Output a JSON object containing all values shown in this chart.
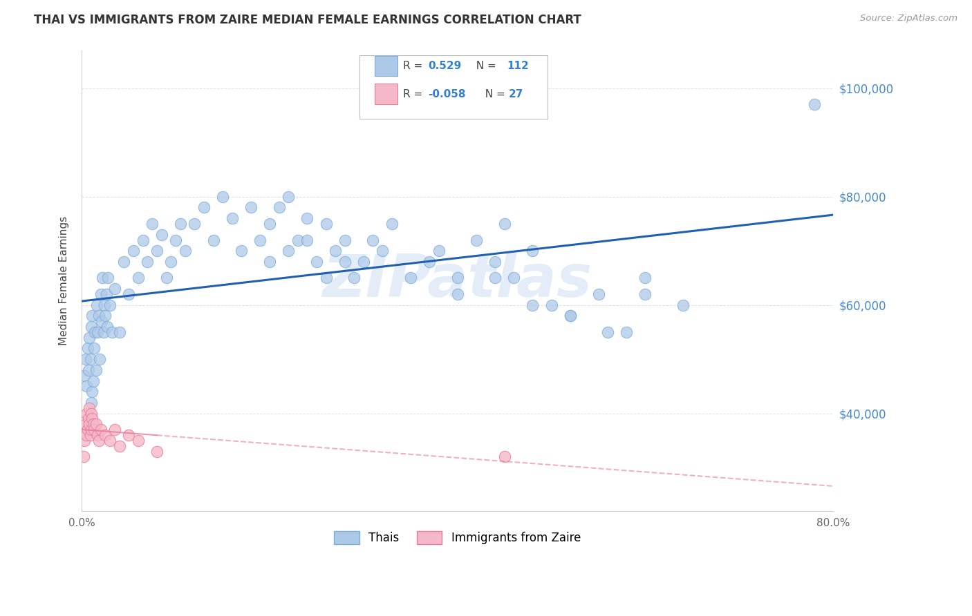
{
  "title": "THAI VS IMMIGRANTS FROM ZAIRE MEDIAN FEMALE EARNINGS CORRELATION CHART",
  "source": "Source: ZipAtlas.com",
  "ylabel": "Median Female Earnings",
  "xmin": 0.0,
  "xmax": 80.0,
  "ymin": 22000,
  "ymax": 107000,
  "yticks": [
    40000,
    60000,
    80000,
    100000
  ],
  "ytick_labels": [
    "$40,000",
    "$60,000",
    "$80,000",
    "$100,000"
  ],
  "xticks": [
    0,
    10,
    20,
    30,
    40,
    50,
    60,
    70,
    80
  ],
  "xtick_labels": [
    "0.0%",
    "",
    "",
    "",
    "",
    "",
    "",
    "",
    "80.0%"
  ],
  "watermark": "ZIPatlas",
  "series1_color": "#adc9e8",
  "series1_edge": "#7aabda",
  "series2_color": "#f5b8c8",
  "series2_edge": "#e87a9a",
  "line1_color": "#2060b0",
  "line2_color": "#e87a9a",
  "legend_label1": "Thais",
  "legend_label2": "Immigrants from Zaire",
  "R1": 0.529,
  "N1": 112,
  "R2": -0.058,
  "N2": 27,
  "background_color": "#ffffff",
  "grid_color": "#cccccc",
  "title_color": "#333333",
  "source_color": "#999999",
  "right_tick_color": "#4488cc"
}
